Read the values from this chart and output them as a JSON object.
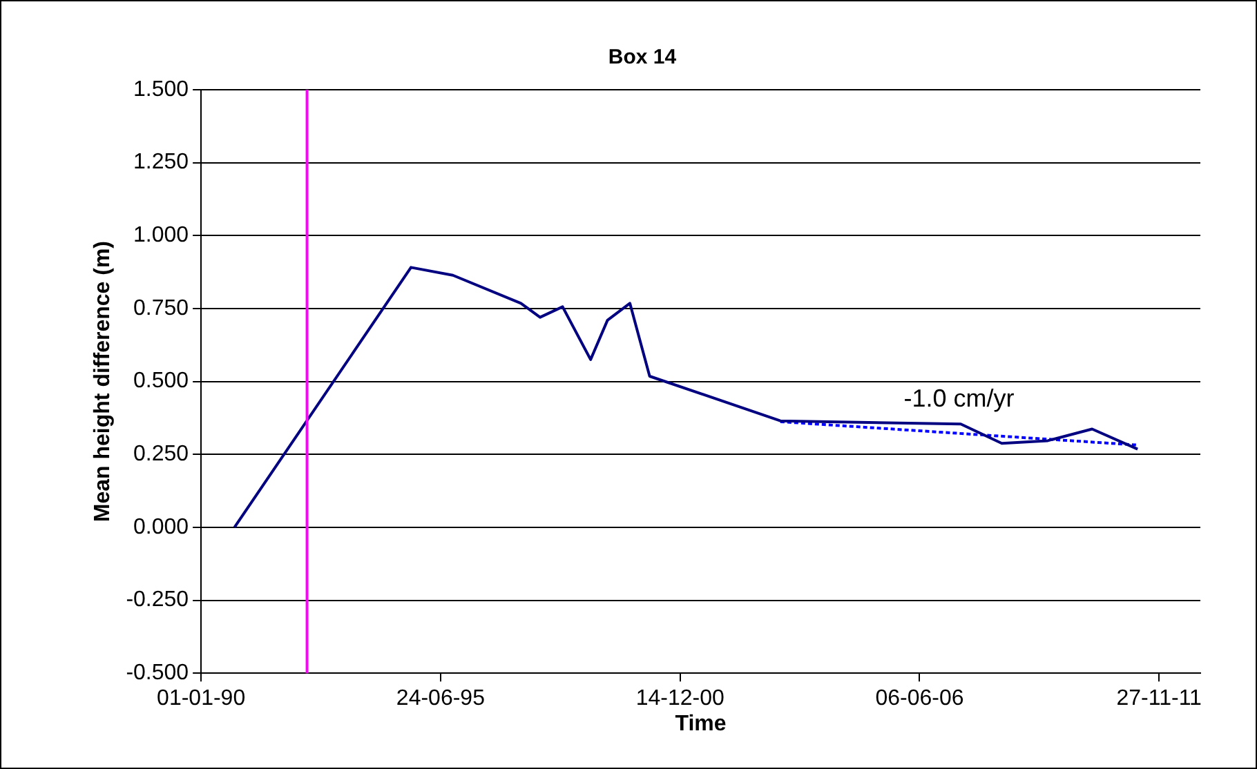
{
  "chart_data": {
    "type": "line",
    "title": "Box 14",
    "xlabel": "Time",
    "ylabel": "Mean height difference (m)",
    "xlim": [
      "1990-01-01",
      "2012-11-06"
    ],
    "xticks": [
      {
        "value": "1990-01-01",
        "label": "01-01-90"
      },
      {
        "value": "1995-06-24",
        "label": "24-06-95"
      },
      {
        "value": "2000-12-14",
        "label": "14-12-00"
      },
      {
        "value": "2006-06-06",
        "label": "06-06-06"
      },
      {
        "value": "2011-11-27",
        "label": "27-11-11"
      }
    ],
    "ylim": [
      -0.5,
      1.5
    ],
    "yticks": [
      {
        "value": -0.5,
        "label": "-0.500"
      },
      {
        "value": -0.25,
        "label": "-0.250"
      },
      {
        "value": 0,
        "label": "0.000"
      },
      {
        "value": 0.25,
        "label": "0.250"
      },
      {
        "value": 0.5,
        "label": "0.500"
      },
      {
        "value": 0.75,
        "label": "0.750"
      },
      {
        "value": 1,
        "label": "1.000"
      },
      {
        "value": 1.25,
        "label": "1.250"
      },
      {
        "value": 1.5,
        "label": "1.500"
      }
    ],
    "grid": "y",
    "legend": false,
    "marker": "none",
    "series": [
      {
        "color": "#000080",
        "line_style": "solid",
        "x": [
          "1990-10-07",
          "1994-10-20",
          "1995-10-05",
          "1997-04-25",
          "1997-10-02",
          "1998-04-08",
          "1998-11-28",
          "1999-04-18",
          "1999-10-22",
          "2000-04-04",
          "2003-04-01",
          "2007-05-16",
          "2008-04-23",
          "2009-05-12",
          "2010-05-17",
          "2011-06-01"
        ],
        "values": [
          0,
          0.891,
          0.864,
          0.768,
          0.72,
          0.756,
          0.575,
          0.71,
          0.768,
          0.518,
          0.365,
          0.354,
          0.288,
          0.297,
          0.337,
          0.268
        ]
      },
      {
        "type": "line",
        "color": "#0000ff",
        "line_style": "dotted",
        "x": [
          "2003-04-01",
          "2011-06-01"
        ],
        "values": [
          0.362,
          0.282
        ]
      }
    ],
    "ref_lines": [
      {
        "axis": "x",
        "value": "1992-06-04",
        "color": "#ff00ff"
      }
    ],
    "annotations": [
      "-1.0 cm/yr"
    ]
  }
}
